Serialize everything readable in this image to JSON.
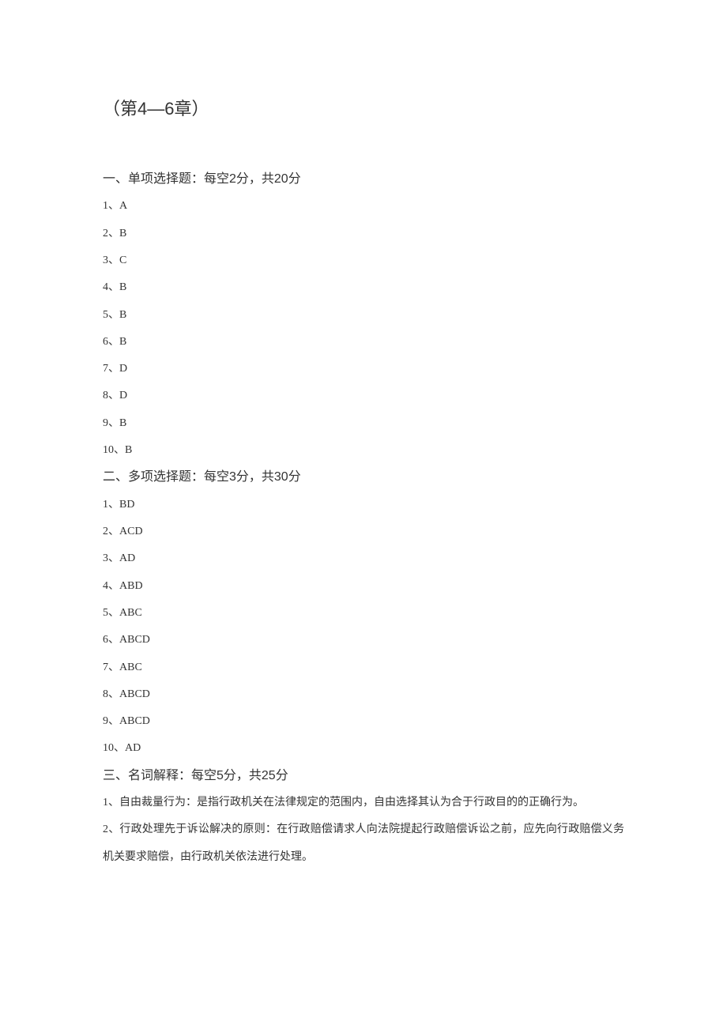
{
  "title": "（第4—6章）",
  "sections": [
    {
      "header": "一、单项选择题：每空2分，共20分",
      "items": [
        "1、A",
        "2、B",
        "3、C",
        "4、B",
        "5、B",
        "6、B",
        "7、D",
        "8、D",
        "9、B",
        "10、B"
      ]
    },
    {
      "header": "二、多项选择题：每空3分，共30分",
      "items": [
        "1、BD",
        "2、ACD",
        "3、AD",
        "4、ABD",
        "5、ABC",
        "6、ABCD",
        "7、ABC",
        "8、ABCD",
        "9、ABCD",
        "10、AD"
      ]
    },
    {
      "header": "三、名词解释：每空5分，共25分",
      "paragraphs": [
        "1、自由裁量行为：是指行政机关在法律规定的范围内，自由选择其认为合于行政目的的正确行为。",
        "2、行政处理先于诉讼解决的原则：在行政赔偿请求人向法院提起行政赔偿诉讼之前，应先向行政赔偿义务机关要求赔偿，由行政机关依法进行处理。"
      ]
    }
  ]
}
